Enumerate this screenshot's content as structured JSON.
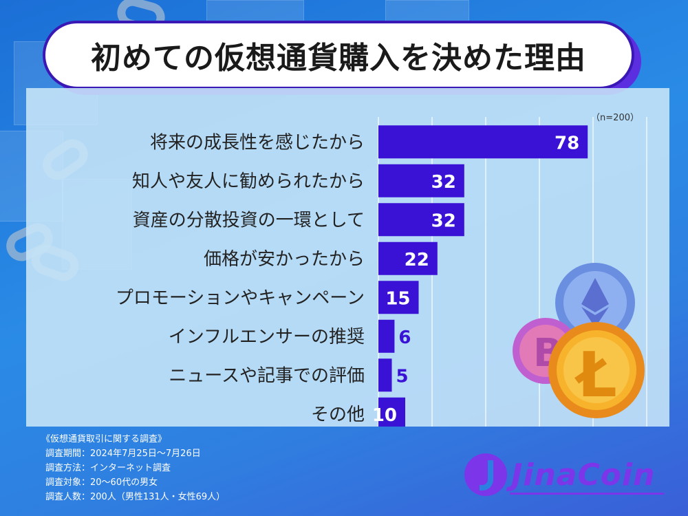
{
  "title": "初めての仮想通貨購入を決めた理由",
  "sample_note": "（n=200）",
  "chart_data": {
    "type": "bar",
    "orientation": "horizontal",
    "categories": [
      "将来の成長性を感じたから",
      "知人や友人に勧められたから",
      "資産の分散投資の一環として",
      "価格が安かったから",
      "プロモーションやキャンペーン",
      "インフルエンサーの推奨",
      "ニュースや記事での評価",
      "その他"
    ],
    "values": [
      78,
      32,
      32,
      22,
      15,
      6,
      5,
      10
    ],
    "title": "初めての仮想通貨購入を決めた理由",
    "xlabel": "",
    "ylabel": "",
    "xlim": [
      0,
      100
    ],
    "grid": true,
    "bar_color": "#3a12d6",
    "grid_color": "#ffffff"
  },
  "footer": {
    "heading": "《仮想通貨取引に関する調査》",
    "lines": [
      "調査期間：2024年7月25日〜7月26日",
      "調査方法：インターネット調査",
      "調査対象：20〜60代の男女",
      "調査人数：200人（男性131人・女性69人）"
    ]
  },
  "logo": {
    "text": "JinaCoin",
    "color": "#7c35e8"
  }
}
